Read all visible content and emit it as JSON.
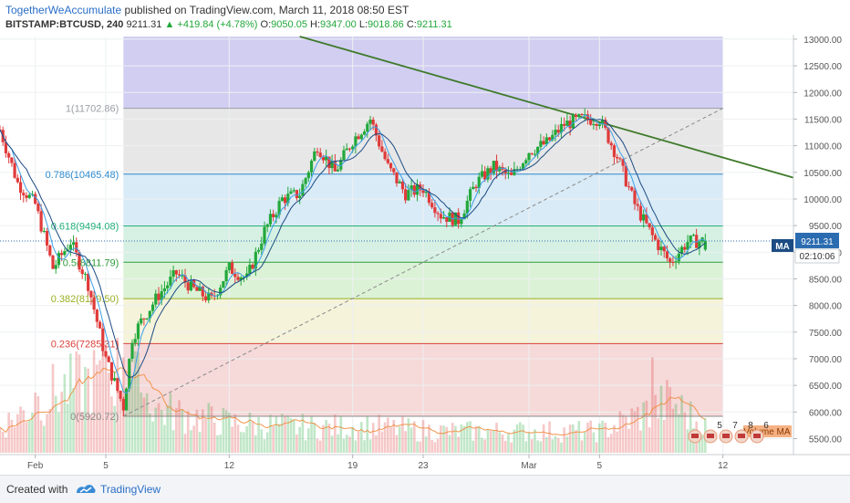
{
  "header": {
    "author": "TogetherWeAccumulate",
    "published": "published on TradingView.com, March 11, 2018 08:50 EST",
    "symbol": "BITSTAMP:BTCUSD, 240",
    "last": "9211.31",
    "change": "+419.84 (+4.78%)",
    "open_label": "O:",
    "open": "9050.05",
    "high_label": "H:",
    "high": "9347.00",
    "low_label": "L:",
    "low": "9018.86",
    "close_label": "C:",
    "close": "9211.31"
  },
  "footer": {
    "created_with": "Created with",
    "brand": "TradingView"
  },
  "colors": {
    "up": "#22a83a",
    "down": "#e03a3a",
    "trendline": "#3f7a2a",
    "ma1": "#3c9ee6",
    "ma2": "#1c4b83",
    "volume_ma": "#f08c3c",
    "price_tag": "#2b6cb0"
  },
  "chart_data": {
    "type": "candlestick",
    "price_axis": {
      "range": [
        5200,
        13050
      ],
      "ticks": [
        5500,
        6000,
        6500,
        7000,
        7500,
        8000,
        8500,
        9000,
        9500,
        10000,
        10500,
        11000,
        11500,
        12000,
        12500,
        13000
      ],
      "tick_labels": [
        "5500.00",
        "6000.00",
        "6500.00",
        "7000.00",
        "7500.00",
        "8000.00",
        "8500.00",
        "9000.00",
        "9500.00",
        "10000.00",
        "10500.00",
        "11000.00",
        "11500.00",
        "12000.00",
        "12500.00",
        "13000.00"
      ]
    },
    "time_axis": {
      "labels": [
        "Feb",
        "5",
        "12",
        "19",
        "23",
        "Mar",
        "5",
        "12"
      ],
      "dates": [
        "2018-02-01",
        "2018-02-05",
        "2018-02-12",
        "2018-02-19",
        "2018-02-23",
        "2018-03-01",
        "2018-03-05",
        "2018-03-12"
      ],
      "range": [
        "2018-01-30",
        "2018-03-16"
      ]
    },
    "fib_levels": [
      {
        "ratio": "1",
        "price": 11702.86,
        "label": "1(11702.86)",
        "color": "#9aa0a6"
      },
      {
        "ratio": "0.786",
        "price": 10465.48,
        "label": "0.786(10465.48)",
        "color": "#2f8bd0"
      },
      {
        "ratio": "0.618",
        "price": 9494.08,
        "label": "0.618(9494.08)",
        "color": "#22b07a"
      },
      {
        "ratio": "0.5",
        "price": 8811.79,
        "label": "0.5(8811.79)",
        "color": "#2e9c3a"
      },
      {
        "ratio": "0.382",
        "price": 8129.5,
        "label": "0.382(8129.50)",
        "color": "#9ab023"
      },
      {
        "ratio": "0.236",
        "price": 7285.31,
        "label": "0.236(7285.31)",
        "color": "#d9423a"
      },
      {
        "ratio": "0",
        "price": 5920.72,
        "label": "0(5920.72)",
        "color": "#8a8a8a"
      }
    ],
    "fib_zones": [
      {
        "from": 11702.86,
        "to": 13050,
        "color": "#c9c6f0"
      },
      {
        "from": 10465.48,
        "to": 11702.86,
        "color": "#e3e3e3"
      },
      {
        "from": 9494.08,
        "to": 10465.48,
        "color": "#d2e7f6"
      },
      {
        "from": 8811.79,
        "to": 9494.08,
        "color": "#cfeede"
      },
      {
        "from": 8129.5,
        "to": 8811.79,
        "color": "#d6f0d0"
      },
      {
        "from": 7285.31,
        "to": 8129.5,
        "color": "#f3f1d3"
      },
      {
        "from": 5920.72,
        "to": 7285.31,
        "color": "#f5d2d2"
      }
    ],
    "fib_anchor": {
      "start": [
        "2018-02-06",
        5920.72
      ],
      "end": [
        "2018-03-12",
        11702.86
      ]
    },
    "trendline": {
      "start": [
        "2018-02-16",
        13050
      ],
      "end": [
        "2018-03-16",
        10400
      ]
    },
    "close_key": [
      [
        "2018-01-30",
        11300
      ],
      [
        "2018-01-31",
        10300
      ],
      [
        "2018-02-01",
        9900
      ],
      [
        "2018-02-02",
        8700
      ],
      [
        "2018-02-03",
        9200
      ],
      [
        "2018-02-04",
        8400
      ],
      [
        "2018-02-05",
        7000
      ],
      [
        "2018-02-06",
        6100
      ],
      [
        "2018-02-06T12",
        7400
      ],
      [
        "2018-02-07",
        7700
      ],
      [
        "2018-02-08",
        8200
      ],
      [
        "2018-02-09",
        8600
      ],
      [
        "2018-02-10",
        8300
      ],
      [
        "2018-02-11",
        8100
      ],
      [
        "2018-02-12",
        8700
      ],
      [
        "2018-02-13",
        8500
      ],
      [
        "2018-02-14",
        9400
      ],
      [
        "2018-02-15",
        10000
      ],
      [
        "2018-02-16",
        10100
      ],
      [
        "2018-02-17",
        11000
      ],
      [
        "2018-02-18",
        10500
      ],
      [
        "2018-02-19",
        11100
      ],
      [
        "2018-02-20",
        11500
      ],
      [
        "2018-02-21",
        10600
      ],
      [
        "2018-02-22",
        10100
      ],
      [
        "2018-02-23",
        10200
      ],
      [
        "2018-02-24",
        9700
      ],
      [
        "2018-02-25",
        9600
      ],
      [
        "2018-02-26",
        10300
      ],
      [
        "2018-02-27",
        10600
      ],
      [
        "2018-02-28",
        10400
      ],
      [
        "2018-03-01",
        10900
      ],
      [
        "2018-03-02",
        11050
      ],
      [
        "2018-03-03",
        11400
      ],
      [
        "2018-03-04",
        11500
      ],
      [
        "2018-03-05",
        11500
      ],
      [
        "2018-03-06",
        10800
      ],
      [
        "2018-03-07",
        9900
      ],
      [
        "2018-03-08",
        9300
      ],
      [
        "2018-03-09",
        8800
      ],
      [
        "2018-03-10",
        9200
      ],
      [
        "2018-03-11",
        9211
      ]
    ],
    "volume_key": [
      [
        "2018-01-30",
        0.3
      ],
      [
        "2018-02-02",
        0.7
      ],
      [
        "2018-02-05",
        0.9
      ],
      [
        "2018-02-06",
        1.0
      ],
      [
        "2018-02-08",
        0.5
      ],
      [
        "2018-02-12",
        0.35
      ],
      [
        "2018-02-16",
        0.3
      ],
      [
        "2018-02-20",
        0.3
      ],
      [
        "2018-02-24",
        0.25
      ],
      [
        "2018-03-01",
        0.25
      ],
      [
        "2018-03-05",
        0.25
      ],
      [
        "2018-03-08",
        0.5
      ],
      [
        "2018-03-09",
        0.6
      ],
      [
        "2018-03-11",
        0.3
      ]
    ],
    "volume_spikes": [
      [
        "2018-02-01",
        0.6
      ],
      [
        "2018-02-04",
        0.7
      ],
      [
        "2018-02-05",
        1.0
      ],
      [
        "2018-02-06",
        0.95
      ],
      [
        "2018-02-07",
        0.6
      ],
      [
        "2018-03-08",
        0.95
      ],
      [
        "2018-03-09",
        0.55
      ]
    ],
    "price_tag": "9211.31",
    "countdown": "02:10:06",
    "ma_label": "MA",
    "volume_label": "Volume MA",
    "event_badges": [
      "5",
      "7",
      "8",
      "6"
    ]
  }
}
